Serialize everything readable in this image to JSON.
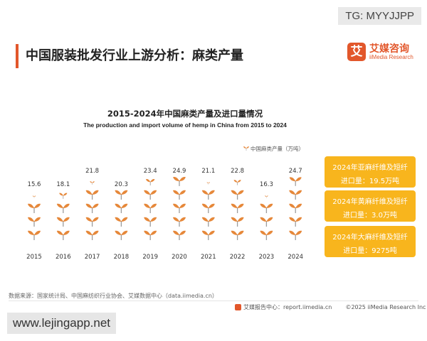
{
  "watermark_top": "TG: MYYJJPP",
  "watermark_bottom": "www.lejingapp.net",
  "page_title": "中国服装批发行业上游分析：麻类产量",
  "logo": {
    "mark": "艾",
    "name_cn": "艾媒咨询",
    "name_en": "iiMedia Research"
  },
  "chart_data": {
    "type": "bar",
    "title": "2015-2024年中国麻类产量及进口量情况",
    "subtitle": "The production and import volume of hemp in China from 2015 to 2024",
    "categories": [
      "2015",
      "2016",
      "2017",
      "2018",
      "2019",
      "2020",
      "2021",
      "2022",
      "2023",
      "2024"
    ],
    "series": [
      {
        "name": "中国麻类产量（万吨）",
        "values": [
          15.6,
          18.1,
          21.8,
          20.3,
          23.4,
          24.9,
          21.1,
          22.8,
          16.3,
          24.7
        ]
      }
    ],
    "data_labels": [
      "15.6",
      "18.1",
      "21.8",
      "20.3",
      "23.4",
      "24.9",
      "21.1",
      "22.8",
      "16.3",
      "24.7"
    ],
    "ylim": [
      0,
      25
    ],
    "mark": "orange-sprout-icon",
    "legend_position": "top-right",
    "colors": {
      "sprout": "#e6883a",
      "stem": "#9c9c9c"
    }
  },
  "side_boxes": [
    {
      "line1": "2024年亚麻纤维及短纤",
      "line2": "进口量：19.5万吨"
    },
    {
      "line1": "2024年黄麻纤维及短纤",
      "line2": "进口量：3.0万吨"
    },
    {
      "line1": "2024年大麻纤维及短纤",
      "line2": "进口量：9275吨"
    }
  ],
  "source": "数据来源：国家统计局、中国麻纺织行业协会、艾媒数据中心（data.iimedia.cn）",
  "footer": {
    "report": "艾媒报告中心：report.iimedia.cn",
    "copyright": "©2025  iiMedia Research  Inc"
  }
}
